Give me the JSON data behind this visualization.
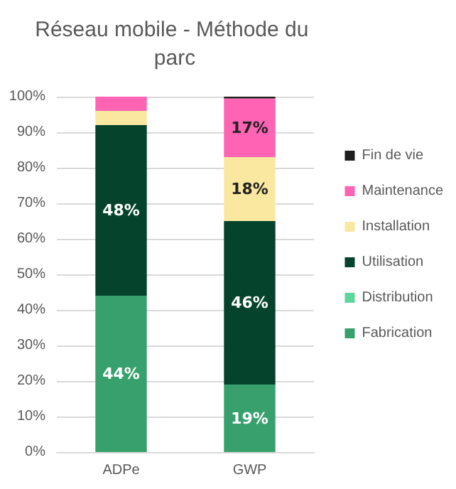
{
  "chart_data": {
    "type": "bar",
    "title": "Réseau mobile - Méthode du parc",
    "stacked": true,
    "categories": [
      "ADPe",
      "GWP"
    ],
    "series": [
      {
        "name": "Fabrication",
        "color": "#37a06c",
        "values": [
          44,
          19
        ],
        "value_labels": [
          "44%",
          "19%"
        ]
      },
      {
        "name": "Distribution",
        "color": "#5fd59c",
        "values": [
          0,
          0
        ],
        "value_labels": [
          null,
          null
        ]
      },
      {
        "name": "Utilisation",
        "color": "#05432c",
        "values": [
          48,
          46
        ],
        "value_labels": [
          "48%",
          "46%"
        ]
      },
      {
        "name": "Installation",
        "color": "#fbe8a0",
        "values": [
          4,
          18
        ],
        "value_labels": [
          null,
          "18%"
        ]
      },
      {
        "name": "Maintenance",
        "color": "#ff63b4",
        "values": [
          4,
          16.5
        ],
        "value_labels": [
          null,
          "17%"
        ]
      },
      {
        "name": "Fin de vie",
        "color": "#1e1e1e",
        "values": [
          0,
          0.5
        ],
        "value_labels": [
          null,
          null
        ]
      }
    ],
    "ylim": [
      0,
      100
    ],
    "yticks": [
      {
        "value": 0,
        "label": "0%"
      },
      {
        "value": 10,
        "label": "10%"
      },
      {
        "value": 20,
        "label": "20%"
      },
      {
        "value": 30,
        "label": "30%"
      },
      {
        "value": 40,
        "label": "40%"
      },
      {
        "value": 50,
        "label": "50%"
      },
      {
        "value": 60,
        "label": "60%"
      },
      {
        "value": 70,
        "label": "70%"
      },
      {
        "value": 80,
        "label": "80%"
      },
      {
        "value": 90,
        "label": "90%"
      },
      {
        "value": 100,
        "label": "100%"
      }
    ],
    "grid": "y",
    "legend": "right"
  }
}
